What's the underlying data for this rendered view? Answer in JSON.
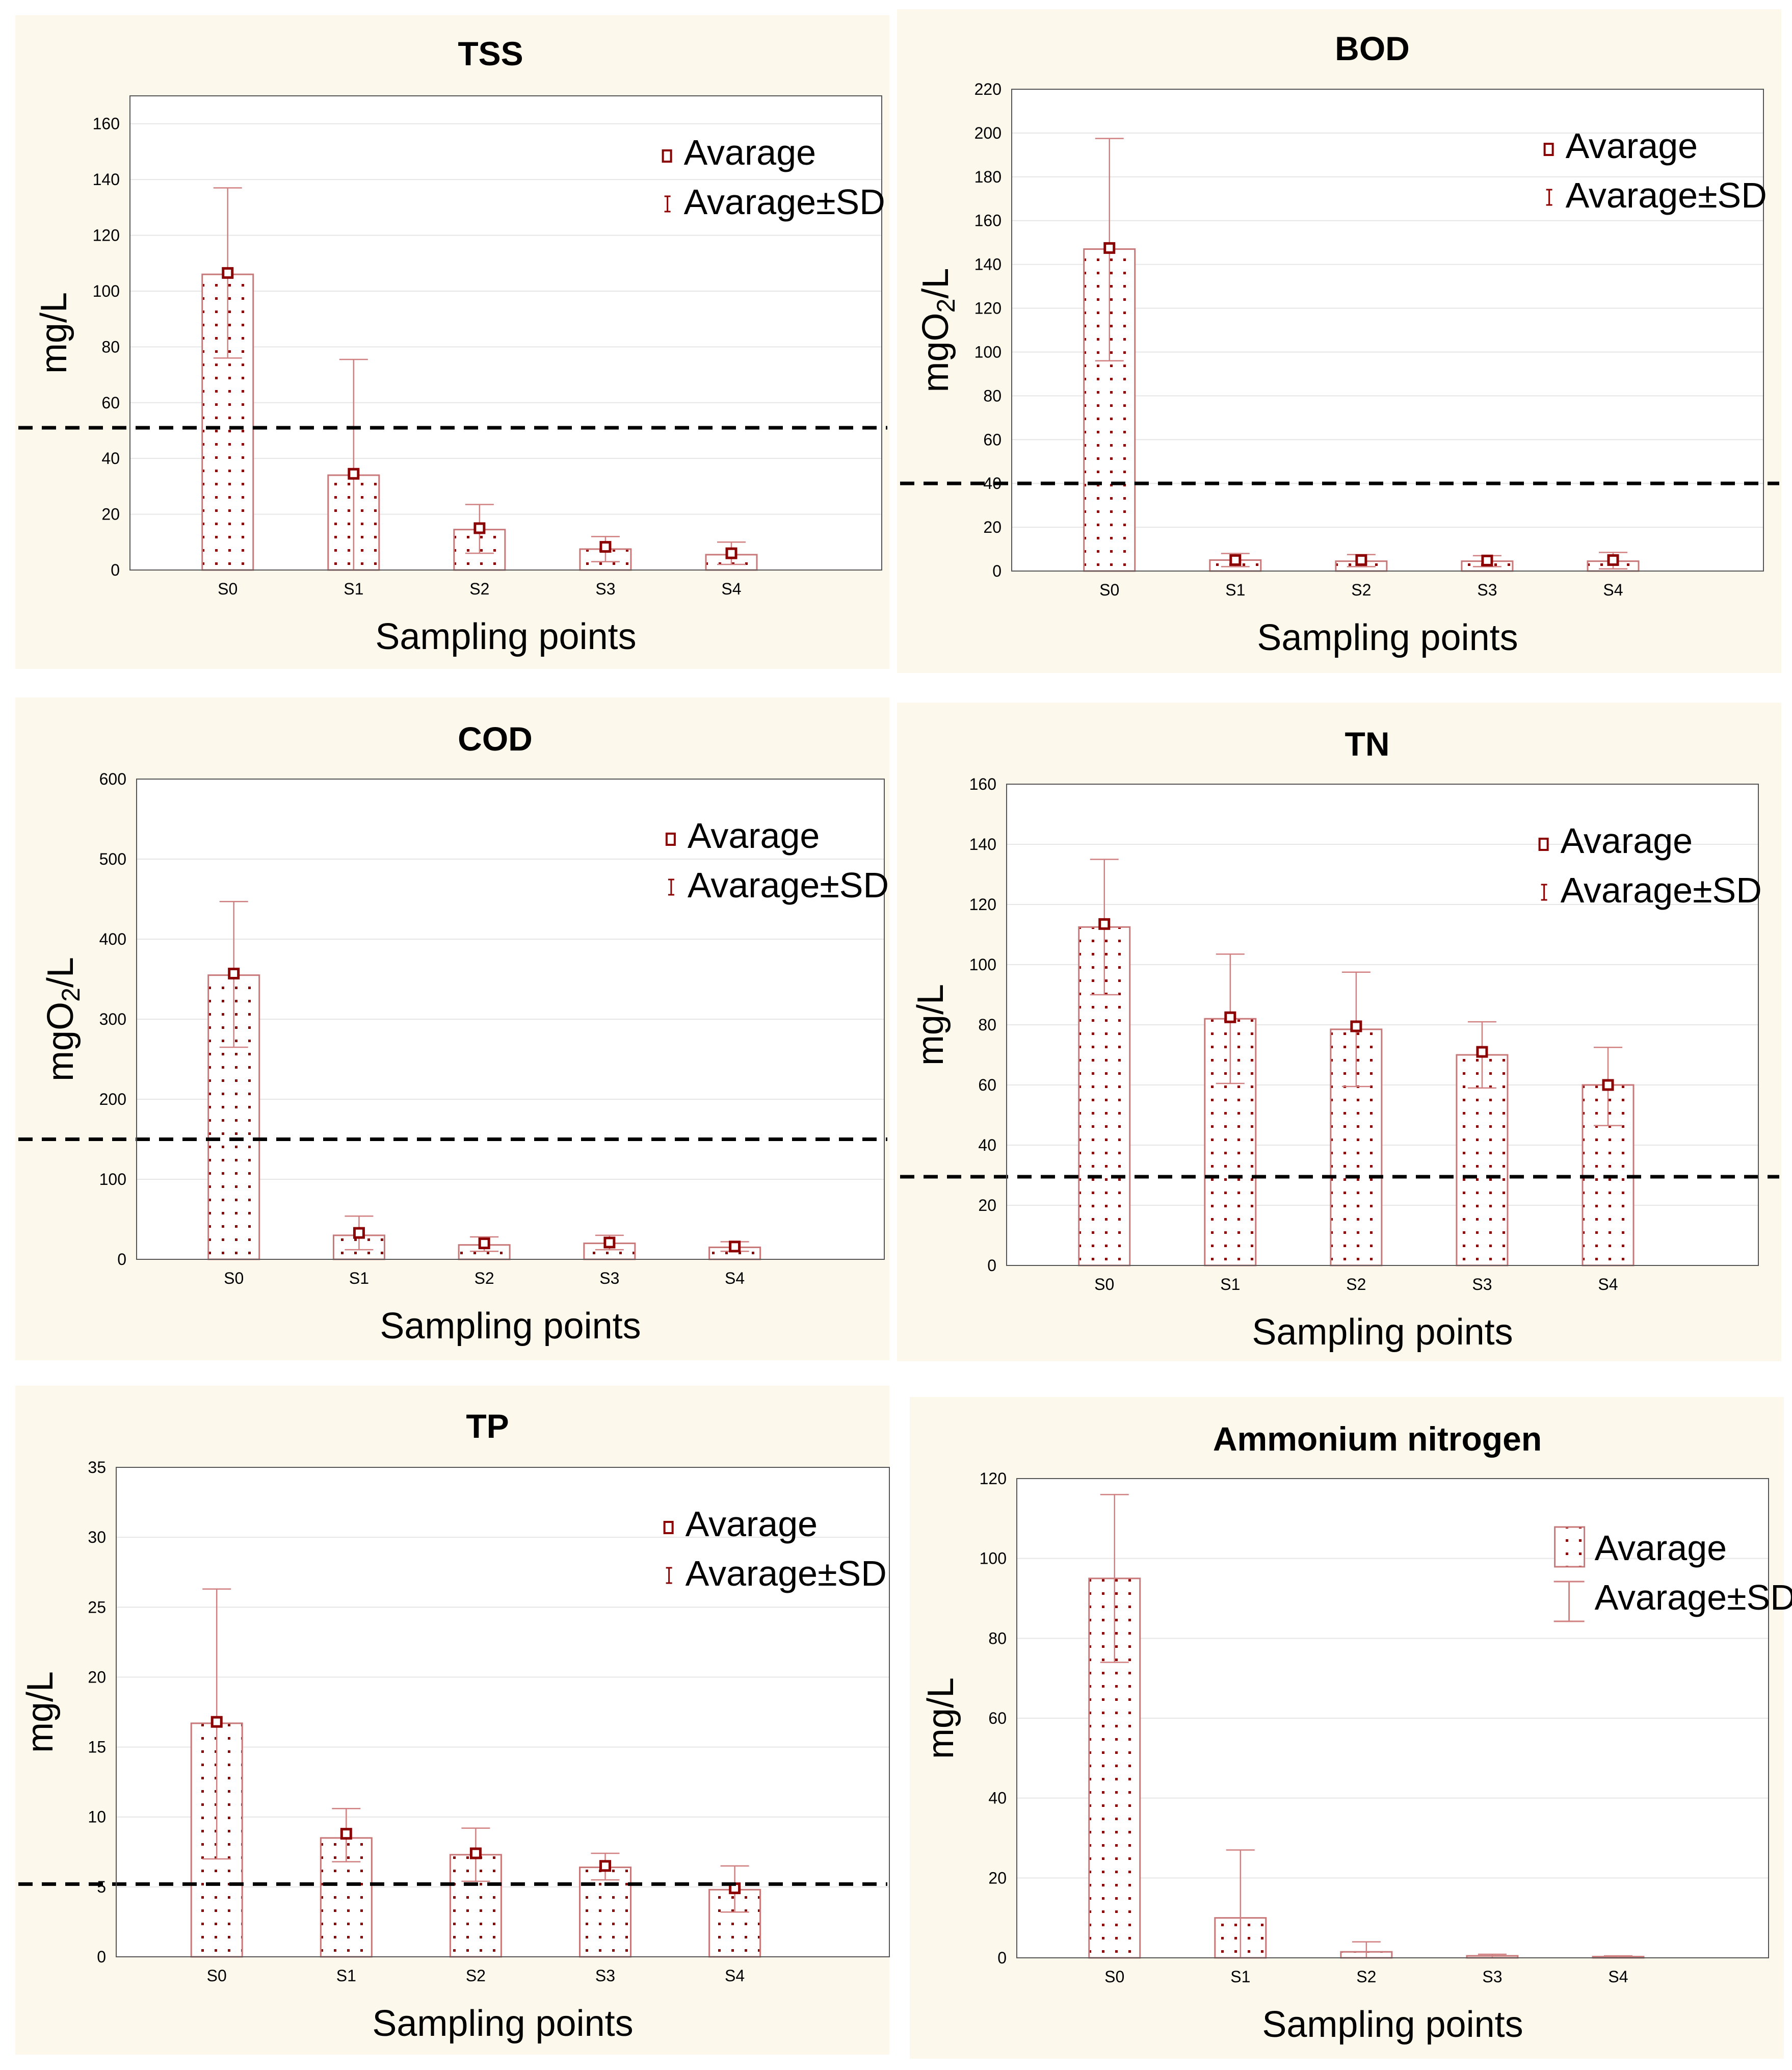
{
  "colors": {
    "panel_bg": "#fdf8ec",
    "plot_bg": "#ffffff",
    "bar_stroke": "#c87878",
    "dot": "#8b0000",
    "errorbar": "#d08080",
    "marker": "#8b0000",
    "threshold": "#000000",
    "grid": "#e6e6e6"
  },
  "chart_data": [
    {
      "type": "bar",
      "title": "TSS",
      "xlabel": "Sampling points",
      "ylabel": "mg/L",
      "ylabel_sub": "",
      "ylabel_tail": "",
      "categories": [
        "S0",
        "S1",
        "S2",
        "S3",
        "S4"
      ],
      "values": [
        106,
        34,
        14.5,
        7.5,
        5.5
      ],
      "averages": [
        106.5,
        34.5,
        15,
        8.3,
        6
      ],
      "sd_upper": [
        137,
        75.5,
        23.5,
        12,
        10
      ],
      "sd_lower": [
        76,
        0,
        6,
        3,
        2
      ],
      "ylim": [
        0,
        170
      ],
      "yticks": [
        0,
        20,
        40,
        60,
        80,
        100,
        120,
        140,
        160
      ],
      "threshold": 51,
      "legend": {
        "position": "top-right",
        "entries": [
          "Avarage",
          "Avarage±SD"
        ],
        "style": "small"
      }
    },
    {
      "type": "bar",
      "title": "BOD",
      "xlabel": "Sampling points",
      "ylabel": "mgO",
      "ylabel_sub": "2",
      "ylabel_tail": "/L",
      "categories": [
        "S0",
        "S1",
        "S2",
        "S3",
        "S4"
      ],
      "values": [
        147,
        5,
        4.5,
        4.5,
        4.5
      ],
      "averages": [
        147.5,
        5,
        5,
        4.8,
        5
      ],
      "sd_upper": [
        197.5,
        8,
        7.5,
        7,
        8.5
      ],
      "sd_lower": [
        96,
        2,
        2,
        2,
        1
      ],
      "ylim": [
        0,
        220
      ],
      "yticks": [
        0,
        20,
        40,
        60,
        80,
        100,
        120,
        140,
        160,
        180,
        200,
        220
      ],
      "threshold": 40,
      "legend": {
        "position": "top-right",
        "entries": [
          "Avarage",
          "Avarage±SD"
        ],
        "style": "small"
      }
    },
    {
      "type": "bar",
      "title": "COD",
      "xlabel": "Sampling points",
      "ylabel": "mgO",
      "ylabel_sub": "2",
      "ylabel_tail": "/L",
      "categories": [
        "S0",
        "S1",
        "S2",
        "S3",
        "S4"
      ],
      "values": [
        355,
        30,
        18,
        20,
        15
      ],
      "averages": [
        357,
        33,
        20,
        21,
        16
      ],
      "sd_upper": [
        447,
        54,
        28,
        30,
        22
      ],
      "sd_lower": [
        265,
        12,
        10,
        12,
        10
      ],
      "ylim": [
        0,
        600
      ],
      "yticks": [
        0,
        100,
        200,
        300,
        400,
        500,
        600
      ],
      "threshold": 150,
      "legend": {
        "position": "top-right",
        "entries": [
          "Avarage",
          "Avarage±SD"
        ],
        "style": "small"
      }
    },
    {
      "type": "bar",
      "title": "TN",
      "xlabel": "Sampling points",
      "ylabel": "mg/L",
      "ylabel_sub": "",
      "ylabel_tail": "",
      "categories": [
        "S0",
        "S1",
        "S2",
        "S3",
        "S4"
      ],
      "values": [
        112.5,
        82,
        78.5,
        70,
        60
      ],
      "averages": [
        113.5,
        82.5,
        79.5,
        71,
        60
      ],
      "sd_upper": [
        135,
        103.5,
        97.5,
        81,
        72.5
      ],
      "sd_lower": [
        90,
        60.5,
        59.5,
        59,
        46.5
      ],
      "ylim": [
        0,
        160
      ],
      "yticks": [
        0,
        20,
        40,
        60,
        80,
        100,
        120,
        140,
        160
      ],
      "threshold": 29.5,
      "legend": {
        "position": "top-right",
        "entries": [
          "Avarage",
          "Avarage±SD"
        ],
        "style": "small"
      }
    },
    {
      "type": "bar",
      "title": "TP",
      "xlabel": "Sampling points",
      "ylabel": "mg/L",
      "ylabel_sub": "",
      "ylabel_tail": "",
      "categories": [
        "S0",
        "S1",
        "S2",
        "S3",
        "S4"
      ],
      "values": [
        16.7,
        8.5,
        7.3,
        6.4,
        4.8
      ],
      "averages": [
        16.8,
        8.8,
        7.4,
        6.5,
        4.9
      ],
      "sd_upper": [
        26.3,
        10.6,
        9.2,
        7.4,
        6.5
      ],
      "sd_lower": [
        7,
        6.8,
        5.4,
        5.5,
        3.2
      ],
      "ylim": [
        0,
        35
      ],
      "yticks": [
        0,
        5,
        10,
        15,
        20,
        25,
        30,
        35
      ],
      "threshold": 5.2,
      "legend": {
        "position": "top-right",
        "entries": [
          "Avarage",
          "Avarage±SD"
        ],
        "style": "small"
      }
    },
    {
      "type": "bar",
      "title": "Ammonium nitrogen",
      "xlabel": "Sampling points",
      "ylabel": "mg/L",
      "ylabel_sub": "",
      "ylabel_tail": "",
      "categories": [
        "S0",
        "S1",
        "S2",
        "S3",
        "S4"
      ],
      "values": [
        95,
        10,
        1.5,
        0.5,
        0.3
      ],
      "averages": null,
      "sd_upper": [
        116,
        27,
        4,
        0.9,
        0.5
      ],
      "sd_lower": [
        74,
        0,
        0,
        0,
        0
      ],
      "ylim": [
        0,
        120
      ],
      "yticks": [
        0,
        20,
        40,
        60,
        80,
        100,
        120
      ],
      "threshold": null,
      "legend": {
        "position": "top-right",
        "entries": [
          "Avarage",
          "Avarage±SD"
        ],
        "style": "large"
      }
    }
  ]
}
